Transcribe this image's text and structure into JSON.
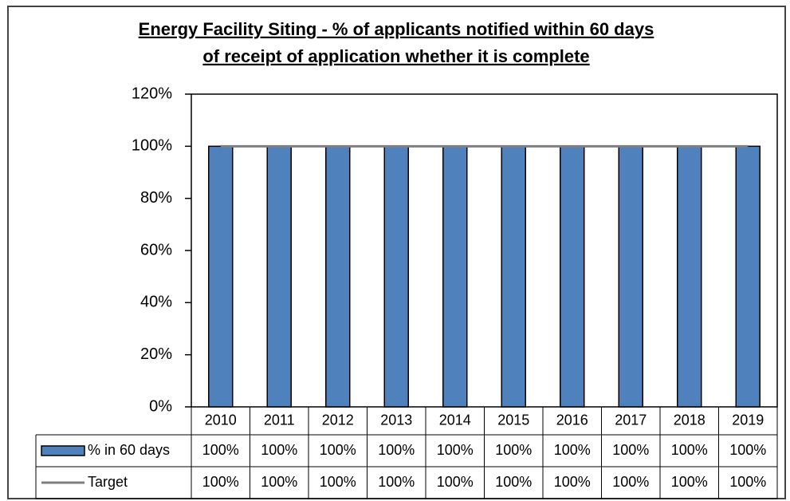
{
  "chart_data": {
    "type": "bar",
    "title": [
      "Energy Facility Siting - % of applicants notified within 60 days",
      "of receipt of application whether it is complete"
    ],
    "categories": [
      "2010",
      "2011",
      "2012",
      "2013",
      "2014",
      "2015",
      "2016",
      "2017",
      "2018",
      "2019"
    ],
    "series": [
      {
        "name": "% in 60 days",
        "type": "bar",
        "color": "#4f81bd",
        "values": [
          100,
          100,
          100,
          100,
          100,
          100,
          100,
          100,
          100,
          100
        ],
        "value_labels": [
          "100%",
          "100%",
          "100%",
          "100%",
          "100%",
          "100%",
          "100%",
          "100%",
          "100%",
          "100%"
        ]
      },
      {
        "name": "Target",
        "type": "line",
        "color": "#7f7f7f",
        "values": [
          100,
          100,
          100,
          100,
          100,
          100,
          100,
          100,
          100,
          100
        ],
        "value_labels": [
          "100%",
          "100%",
          "100%",
          "100%",
          "100%",
          "100%",
          "100%",
          "100%",
          "100%",
          "100%"
        ]
      }
    ],
    "ylim": [
      0,
      120
    ],
    "yticks": [
      {
        "value": 0,
        "label": "0%"
      },
      {
        "value": 20,
        "label": "20%"
      },
      {
        "value": 40,
        "label": "40%"
      },
      {
        "value": 60,
        "label": "60%"
      },
      {
        "value": 80,
        "label": "80%"
      },
      {
        "value": 100,
        "label": "100%"
      },
      {
        "value": 120,
        "label": "120%"
      }
    ],
    "grid": false,
    "data_table": true
  }
}
